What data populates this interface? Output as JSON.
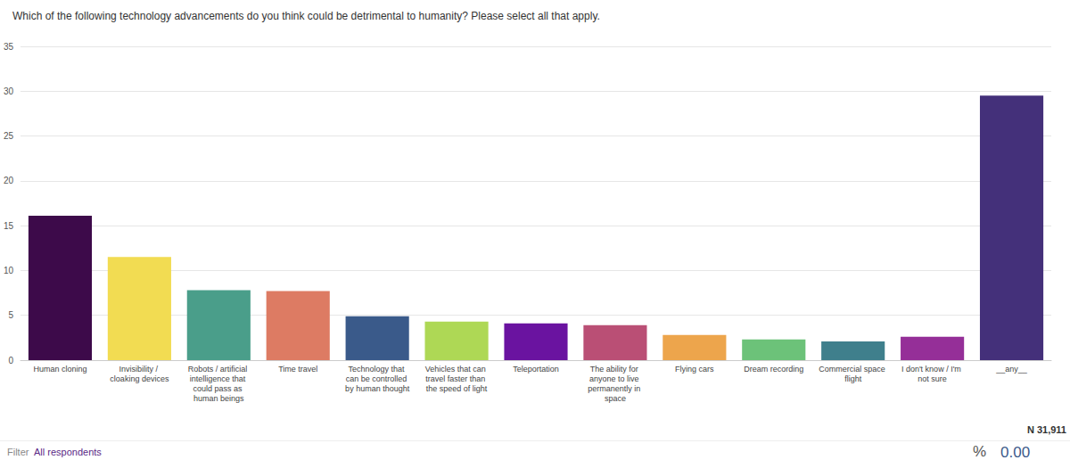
{
  "chart_data": {
    "type": "bar",
    "title": "Which of the following technology advancements do you think could be detrimental to humanity? Please select all that apply.",
    "categories": [
      "Human cloning",
      "Invisibility / cloaking devices",
      "Robots / artificial intelligence that could pass as human beings",
      "Time travel",
      "Technology that can be controlled by human thought",
      "Vehicles that can travel faster than the speed of light",
      "Teleportation",
      "The ability for anyone to live permanently in space",
      "Flying cars",
      "Dream recording",
      "Commercial space flight",
      "I don't know / I'm not sure",
      "__any__"
    ],
    "values": [
      16.1,
      11.5,
      7.8,
      7.7,
      4.9,
      4.3,
      4.1,
      3.9,
      2.8,
      2.3,
      2.1,
      2.6,
      29.5
    ],
    "colors": [
      "#3d0a4a",
      "#f2dc52",
      "#4a9e8a",
      "#dd7b63",
      "#3a5a8a",
      "#aed855",
      "#6a13a0",
      "#ba4f75",
      "#eda54c",
      "#6cc279",
      "#3f7f8c",
      "#952f98",
      "#44307a"
    ],
    "ylim": [
      0,
      35
    ],
    "yticks": [
      0,
      5,
      10,
      15,
      20,
      25,
      30,
      35
    ],
    "grid": true,
    "annotations": [
      "N 31,911",
      "Filter",
      "All respondents",
      "%",
      "0.00"
    ]
  }
}
